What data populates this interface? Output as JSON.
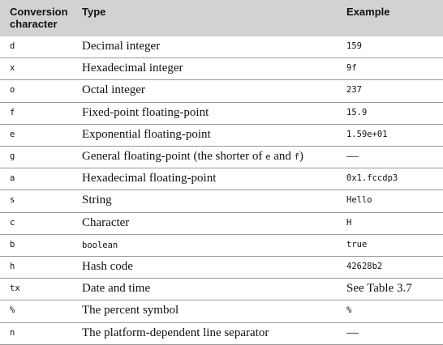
{
  "header": {
    "col1_line1": "Conversion",
    "col1_line2": "character",
    "col2": "Type",
    "col3": "Example"
  },
  "rows": [
    {
      "char": "d",
      "type": "Decimal integer",
      "example": "159",
      "example_mono": true
    },
    {
      "char": "x",
      "type": "Hexadecimal integer",
      "example": "9f",
      "example_mono": true
    },
    {
      "char": "o",
      "type": "Octal integer",
      "example": "237",
      "example_mono": true
    },
    {
      "char": "f",
      "type": "Fixed-point floating-point",
      "example": "15.9",
      "example_mono": true
    },
    {
      "char": "e",
      "type": "Exponential floating-point",
      "example": "1.59e+01",
      "example_mono": true
    },
    {
      "char": "g",
      "type_parts": [
        "General floating-point (the shorter of ",
        "e",
        " and ",
        "f",
        ")"
      ],
      "example": "—",
      "example_mono": false
    },
    {
      "char": "a",
      "type": "Hexadecimal floating-point",
      "example": "0x1.fccdp3",
      "example_mono": true
    },
    {
      "char": "s",
      "type": "String",
      "example": "Hello",
      "example_mono": true
    },
    {
      "char": "c",
      "type": "Character",
      "example": "H",
      "example_mono": true
    },
    {
      "char": "b",
      "type": "boolean",
      "type_mono": true,
      "example": "true",
      "example_mono": true
    },
    {
      "char": "h",
      "type": "Hash code",
      "example": "42628b2",
      "example_mono": true
    },
    {
      "char": "tx",
      "type": "Date and time",
      "example": "See Table 3.7",
      "example_mono": false
    },
    {
      "char": "%",
      "type": "The percent symbol",
      "example": "%",
      "example_mono": true
    },
    {
      "char": "n",
      "type": "The platform-dependent line separator",
      "example": "—",
      "example_mono": false
    }
  ]
}
